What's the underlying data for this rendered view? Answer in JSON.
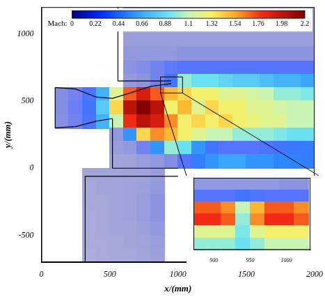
{
  "chart_data": [
    {
      "type": "heatmap",
      "xlabel": "x/(mm)",
      "ylabel": "y/(mm)",
      "xlim": [
        0,
        2000
      ],
      "xticks": [
        0,
        500,
        1000,
        1500,
        2000
      ],
      "ylim": [
        -700,
        1200
      ],
      "yticks": [
        -500,
        0,
        500,
        1000
      ],
      "grid": false,
      "colorbar": {
        "label": "Mach:",
        "range": [
          0,
          2.2
        ],
        "ticks": [
          0,
          0.22,
          0.44,
          0.66,
          0.88,
          1.1,
          1.32,
          1.54,
          1.76,
          1.98,
          2.2
        ]
      },
      "heatmap": {
        "x": [
          50,
          150,
          250,
          350,
          450,
          550,
          650,
          750,
          850,
          950,
          1050,
          1150,
          1250,
          1350,
          1450,
          1550,
          1650,
          1750,
          1850,
          1950
        ],
        "y": [
          1150,
          1050,
          950,
          850,
          750,
          650,
          550,
          450,
          350,
          250,
          150,
          50,
          -50,
          -150,
          -250,
          -350,
          -450,
          -550,
          -650
        ],
        "cells": [
          [
            null,
            null,
            null,
            null,
            null,
            null,
            0.05,
            0.05,
            0.05,
            0.05,
            0.05,
            0.05,
            0.05,
            0.05,
            0.05,
            0.05,
            0.05,
            0.05,
            0.05,
            0.05
          ],
          [
            null,
            null,
            null,
            null,
            null,
            null,
            0.06,
            0.06,
            0.06,
            0.06,
            0.06,
            0.06,
            0.06,
            0.06,
            0.06,
            0.06,
            0.06,
            0.06,
            0.06,
            0.06
          ],
          [
            null,
            null,
            null,
            null,
            null,
            null,
            0.08,
            0.08,
            0.08,
            0.08,
            0.08,
            0.08,
            0.08,
            0.08,
            0.08,
            0.08,
            0.08,
            0.08,
            0.08,
            0.08
          ],
          [
            null,
            null,
            null,
            null,
            null,
            null,
            0.1,
            0.1,
            0.1,
            0.1,
            0.12,
            0.12,
            0.12,
            0.12,
            0.12,
            0.12,
            0.12,
            0.12,
            0.12,
            0.12
          ],
          [
            null,
            null,
            null,
            null,
            null,
            null,
            0.12,
            0.15,
            0.2,
            0.25,
            0.3,
            0.3,
            0.3,
            0.3,
            0.3,
            0.3,
            0.3,
            0.3,
            0.3,
            0.3
          ],
          [
            null,
            null,
            null,
            null,
            null,
            null,
            0.1,
            0.12,
            0.2,
            0.4,
            1.0,
            0.9,
            0.9,
            0.85,
            0.8,
            0.8,
            0.75,
            0.7,
            0.7,
            0.65
          ],
          [
            null,
            0.15,
            0.2,
            0.35,
            0.7,
            1.2,
            1.7,
            1.9,
            1.7,
            1.5,
            1.4,
            1.3,
            1.3,
            1.2,
            1.2,
            1.15,
            1.1,
            1.0,
            1.0,
            0.95
          ],
          [
            null,
            0.15,
            0.22,
            0.4,
            0.8,
            1.4,
            2.0,
            2.2,
            2.0,
            1.3,
            1.5,
            1.2,
            1.4,
            1.3,
            1.3,
            1.2,
            1.2,
            1.15,
            1.1,
            1.1
          ],
          [
            null,
            0.14,
            0.2,
            0.35,
            0.7,
            1.1,
            1.8,
            2.0,
            1.9,
            1.6,
            1.3,
            1.4,
            1.3,
            1.4,
            1.3,
            1.25,
            1.2,
            1.2,
            1.1,
            1.1
          ],
          [
            null,
            null,
            null,
            null,
            null,
            0.1,
            0.6,
            1.4,
            1.6,
            1.5,
            1.3,
            1.2,
            1.1,
            1.1,
            1.0,
            1.0,
            1.0,
            0.95,
            0.9,
            0.9
          ],
          [
            null,
            null,
            null,
            null,
            null,
            0.08,
            0.1,
            0.2,
            0.6,
            1.0,
            0.9,
            0.6,
            0.4,
            0.3,
            0.3,
            0.3,
            0.35,
            0.4,
            0.45,
            0.5
          ],
          [
            null,
            null,
            null,
            null,
            null,
            0.05,
            0.06,
            0.08,
            0.1,
            0.15,
            0.3,
            0.5,
            0.6,
            0.65,
            0.65,
            0.6,
            0.6,
            0.55,
            0.55,
            0.5
          ],
          [
            null,
            null,
            null,
            0.05,
            0.05,
            0.05,
            0.06,
            0.06,
            0.08,
            null,
            null,
            null,
            null,
            null,
            null,
            null,
            null,
            null,
            null,
            null
          ],
          [
            null,
            null,
            null,
            0.04,
            0.05,
            0.05,
            0.06,
            0.07,
            0.1,
            null,
            null,
            null,
            null,
            null,
            null,
            null,
            null,
            null,
            null,
            null
          ],
          [
            null,
            null,
            null,
            0.04,
            0.04,
            0.05,
            0.06,
            0.08,
            0.12,
            null,
            null,
            null,
            null,
            null,
            null,
            null,
            null,
            null,
            null,
            null
          ],
          [
            null,
            null,
            null,
            0.03,
            0.04,
            0.05,
            0.06,
            0.08,
            0.12,
            null,
            null,
            null,
            null,
            null,
            null,
            null,
            null,
            null,
            null,
            null
          ],
          [
            null,
            null,
            null,
            0.03,
            0.04,
            0.05,
            0.05,
            0.07,
            0.1,
            null,
            null,
            null,
            null,
            null,
            null,
            null,
            null,
            null,
            null,
            null
          ],
          [
            null,
            null,
            null,
            0.03,
            0.03,
            0.04,
            0.05,
            0.06,
            0.08,
            null,
            null,
            null,
            null,
            null,
            null,
            null,
            null,
            null,
            null,
            null
          ],
          [
            null,
            null,
            null,
            0.02,
            0.03,
            0.04,
            0.04,
            0.05,
            0.07,
            null,
            null,
            null,
            null,
            null,
            null,
            null,
            null,
            null,
            null,
            null
          ]
        ]
      },
      "series": [
        {
          "x": [
            100,
            250,
            400,
            520,
            650,
            800,
            950
          ],
          "values": [
            600,
            590,
            530,
            520,
            560,
            610,
            630
          ],
          "color": "#000000"
        },
        {
          "x": [
            100,
            250,
            400,
            520
          ],
          "values": [
            300,
            310,
            350,
            370
          ],
          "color": "#000000"
        },
        {
          "x": [
            100,
            100
          ],
          "values": [
            300,
            600
          ],
          "color": "#000000"
        },
        {
          "x": [
            560,
            560,
            950
          ],
          "values": [
            1200,
            650,
            650
          ],
          "color": "#000000"
        },
        {
          "x": [
            520,
            520,
            1000
          ],
          "values": [
            370,
            0,
            0
          ],
          "color": "#000000"
        },
        {
          "x": [
            320,
            320,
            1000
          ],
          "values": [
            -700,
            -60,
            -60
          ],
          "color": "#000000"
        }
      ]
    },
    {
      "type": "heatmap",
      "xlim": [
        872,
        1033
      ],
      "xticks": [
        900,
        950,
        1000
      ],
      "ylim": [
        560,
        680
      ],
      "grid": false,
      "tick_labels": "x",
      "heatmap": {
        "x": [
          880,
          900,
          920,
          940,
          960,
          980,
          1000,
          1020
        ],
        "y": [
          670,
          650,
          630,
          610,
          590,
          570
        ],
        "cells": [
          [
            0.1,
            0.1,
            0.1,
            0.1,
            0.1,
            0.1,
            0.12,
            0.12
          ],
          [
            0.3,
            0.3,
            0.3,
            0.4,
            0.35,
            0.3,
            0.3,
            0.3
          ],
          [
            1.7,
            1.7,
            1.6,
            1.1,
            1.5,
            1.7,
            1.7,
            1.6
          ],
          [
            1.8,
            1.8,
            1.7,
            1.0,
            1.6,
            1.8,
            1.8,
            1.7
          ],
          [
            1.2,
            1.2,
            1.2,
            0.95,
            1.2,
            1.3,
            1.3,
            1.3
          ],
          [
            1.0,
            1.0,
            1.0,
            0.9,
            1.0,
            1.1,
            1.1,
            1.1
          ]
        ]
      }
    }
  ]
}
